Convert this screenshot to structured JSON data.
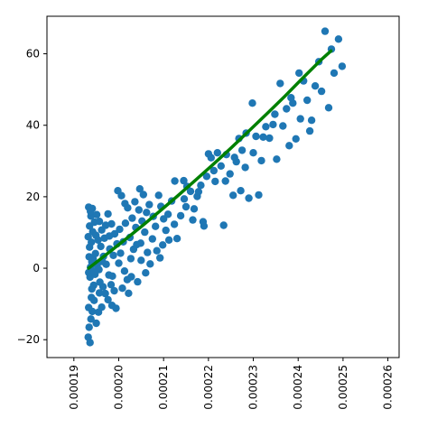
{
  "chart_data": {
    "type": "scatter",
    "title": "",
    "xlabel": "",
    "ylabel": "",
    "xlim": [
      0.000184,
      0.0002625
    ],
    "ylim": [
      -25,
      70.5
    ],
    "grid": false,
    "legend": "none",
    "x_ticks": [
      {
        "value": 0.00019,
        "label": "0.00019"
      },
      {
        "value": 0.0002,
        "label": "0.00020"
      },
      {
        "value": 0.00021,
        "label": "0.00021"
      },
      {
        "value": 0.00022,
        "label": "0.00022"
      },
      {
        "value": 0.00023,
        "label": "0.00023"
      },
      {
        "value": 0.00024,
        "label": "0.00024"
      },
      {
        "value": 0.00025,
        "label": "0.00025"
      },
      {
        "value": 0.00026,
        "label": "0.00026"
      }
    ],
    "y_ticks": [
      {
        "value": -20,
        "label": "−20"
      },
      {
        "value": 0,
        "label": "0"
      },
      {
        "value": 20,
        "label": "20"
      },
      {
        "value": 40,
        "label": "40"
      },
      {
        "value": 60,
        "label": "60"
      }
    ],
    "series": [
      {
        "kind": "scatter",
        "color": "#1f77b4",
        "points": [
          [
            0.0001932,
            -19.3
          ],
          [
            0.0001936,
            -20.8
          ],
          [
            0.0001934,
            -16.5
          ],
          [
            0.0001938,
            -14.2
          ],
          [
            0.0001941,
            -12.1
          ],
          [
            0.0001933,
            -11.0
          ],
          [
            0.0001945,
            -9.0
          ],
          [
            0.0001939,
            -8.2
          ],
          [
            0.000195,
            -15.4
          ],
          [
            0.0001955,
            -12.3
          ],
          [
            0.0001962,
            -10.9
          ],
          [
            0.000197,
            -7.1
          ],
          [
            0.0001965,
            -5.2
          ],
          [
            0.0001958,
            -3.9
          ],
          [
            0.0001944,
            -4.8
          ],
          [
            0.0001936,
            -2.5
          ],
          [
            0.0001933,
            -1.2
          ],
          [
            0.0001937,
            0.3
          ],
          [
            0.000194,
            1.8
          ],
          [
            0.0001934,
            3.2
          ],
          [
            0.0001943,
            2.6
          ],
          [
            0.0001948,
            4.1
          ],
          [
            0.0001952,
            0.9
          ],
          [
            0.0001947,
            -1.7
          ],
          [
            0.0001956,
            -0.4
          ],
          [
            0.0001935,
            5.9
          ],
          [
            0.0001939,
            7.3
          ],
          [
            0.0001932,
            8.8
          ],
          [
            0.0001942,
            10.2
          ],
          [
            0.0001935,
            11.8
          ],
          [
            0.0001946,
            12.9
          ],
          [
            0.0001938,
            14.6
          ],
          [
            0.0001941,
            16.7
          ],
          [
            0.0001933,
            17.1
          ],
          [
            0.0001951,
            15.0
          ],
          [
            0.0001957,
            13.1
          ],
          [
            0.0001962,
            10.7
          ],
          [
            0.0001968,
            8.4
          ],
          [
            0.000196,
            6.1
          ],
          [
            0.0001954,
            7.9
          ],
          [
            0.0001966,
            3.3
          ],
          [
            0.0001972,
            1.1
          ],
          [
            0.0001978,
            -1.9
          ],
          [
            0.0001983,
            -4.6
          ],
          [
            0.000199,
            -6.3
          ],
          [
            0.0001976,
            -8.8
          ],
          [
            0.0001985,
            -10.4
          ],
          [
            0.0001994,
            -11.2
          ],
          [
            0.000198,
            5.4
          ],
          [
            0.0001988,
            3.6
          ],
          [
            0.0001996,
            6.8
          ],
          [
            0.0001991,
            9.6
          ],
          [
            0.0001984,
            12.4
          ],
          [
            0.0001976,
            15.2
          ],
          [
            0.0002002,
            10.9
          ],
          [
            0.000201,
            7.4
          ],
          [
            0.0002004,
            4.2
          ],
          [
            0.0002,
            1.4
          ],
          [
            0.0002013,
            -0.8
          ],
          [
            0.0002019,
            -3.2
          ],
          [
            0.0002008,
            -5.6
          ],
          [
            0.0002022,
            -7.0
          ],
          [
            0.0002027,
            2.7
          ],
          [
            0.0002033,
            5.3
          ],
          [
            0.0002025,
            8.6
          ],
          [
            0.0002038,
            11.4
          ],
          [
            0.000203,
            14.0
          ],
          [
            0.000202,
            16.9
          ],
          [
            0.0002014,
            18.1
          ],
          [
            0.0002006,
            20.3
          ],
          [
            0.0001998,
            21.7
          ],
          [
            0.0002036,
            18.6
          ],
          [
            0.0002045,
            16.3
          ],
          [
            0.0002052,
            13.2
          ],
          [
            0.0002058,
            10.1
          ],
          [
            0.0002049,
            7.0
          ],
          [
            0.0002064,
            4.4
          ],
          [
            0.000207,
            1.2
          ],
          [
            0.000206,
            -1.3
          ],
          [
            0.0002042,
            -3.8
          ],
          [
            0.0002075,
            8.2
          ],
          [
            0.0002082,
            11.7
          ],
          [
            0.0002077,
            14.5
          ],
          [
            0.0002068,
            17.8
          ],
          [
            0.0002055,
            20.6
          ],
          [
            0.0002047,
            22.2
          ],
          [
            0.0002089,
            20.4
          ],
          [
            0.0002094,
            17.3
          ],
          [
            0.00021,
            13.8
          ],
          [
            0.0002105,
            10.6
          ],
          [
            0.0002098,
            6.5
          ],
          [
            0.0002092,
            2.9
          ],
          [
            0.000211,
            15.1
          ],
          [
            0.0002118,
            18.8
          ],
          [
            0.0002124,
            12.3
          ],
          [
            0.000213,
            8.3
          ],
          [
            0.0002138,
            14.7
          ],
          [
            0.0002146,
            19.4
          ],
          [
            0.0002152,
            22.9
          ],
          [
            0.0002145,
            24.5
          ],
          [
            0.000216,
            21.5
          ],
          [
            0.0002168,
            16.6
          ],
          [
            0.0002175,
            20.1
          ],
          [
            0.0002183,
            23.2
          ],
          [
            0.000219,
            11.8
          ],
          [
            0.0002196,
            25.7
          ],
          [
            0.0002206,
            30.9
          ],
          [
            0.0002212,
            27.3
          ],
          [
            0.000222,
            32.3
          ],
          [
            0.0002228,
            28.6
          ],
          [
            0.0002234,
            12.0
          ],
          [
            0.000224,
            31.8
          ],
          [
            0.0002248,
            26.4
          ],
          [
            0.0002255,
            20.4
          ],
          [
            0.0002262,
            29.8
          ],
          [
            0.0002268,
            36.3
          ],
          [
            0.0002275,
            33.0
          ],
          [
            0.0002282,
            28.2
          ],
          [
            0.000229,
            19.6
          ],
          [
            0.0002298,
            46.2
          ],
          [
            0.0002306,
            36.9
          ],
          [
            0.00023,
            32.3
          ],
          [
            0.0002312,
            20.5
          ],
          [
            0.0002322,
            36.7
          ],
          [
            0.0002328,
            39.6
          ],
          [
            0.0002336,
            36.4
          ],
          [
            0.0002344,
            40.2
          ],
          [
            0.0002352,
            30.5
          ],
          [
            0.000236,
            51.7
          ],
          [
            0.0002366,
            39.8
          ],
          [
            0.0002374,
            44.6
          ],
          [
            0.000238,
            34.3
          ],
          [
            0.0002388,
            46.2
          ],
          [
            0.0002395,
            36.2
          ],
          [
            0.0002402,
            54.6
          ],
          [
            0.0002412,
            52.4
          ],
          [
            0.000242,
            47.0
          ],
          [
            0.000243,
            41.4
          ],
          [
            0.0002438,
            51.0
          ],
          [
            0.0002446,
            57.8
          ],
          [
            0.0002452,
            49.5
          ],
          [
            0.000246,
            66.3
          ],
          [
            0.0002468,
            44.9
          ],
          [
            0.000248,
            54.6
          ],
          [
            0.000249,
            64.1
          ],
          [
            0.0002498,
            56.5
          ],
          [
            0.0001937,
            15.9
          ],
          [
            0.000194,
            -5.8
          ],
          [
            0.0001945,
            -0.9
          ],
          [
            0.0001949,
            9.2
          ],
          [
            0.0001957,
            -6.9
          ],
          [
            0.0001963,
            1.9
          ],
          [
            0.0001971,
            12.0
          ],
          [
            0.0001979,
            9.0
          ],
          [
            0.0001986,
            -2.2
          ],
          [
            0.0002015,
            12.6
          ],
          [
            0.0002028,
            -2.4
          ],
          [
            0.000204,
            6.6
          ],
          [
            0.000205,
            2.2
          ],
          [
            0.0002062,
            15.6
          ],
          [
            0.0002085,
            4.9
          ],
          [
            0.0002112,
            7.9
          ],
          [
            0.0002125,
            24.4
          ],
          [
            0.000215,
            17.2
          ],
          [
            0.0002165,
            13.5
          ],
          [
            0.0002178,
            21.4
          ],
          [
            0.0002188,
            13.0
          ],
          [
            0.00022,
            32.0
          ],
          [
            0.0002215,
            24.3
          ],
          [
            0.0002238,
            24.4
          ],
          [
            0.0002258,
            31.0
          ],
          [
            0.0002272,
            21.7
          ],
          [
            0.0002284,
            37.8
          ],
          [
            0.0002318,
            30.1
          ],
          [
            0.0002348,
            43.1
          ],
          [
            0.0002384,
            47.7
          ],
          [
            0.0002405,
            41.8
          ],
          [
            0.0002426,
            38.4
          ],
          [
            0.0002474,
            61.3
          ]
        ]
      },
      {
        "kind": "line",
        "color": "#008000",
        "points": [
          [
            0.0001933,
            0.0
          ],
          [
            0.000197,
            3.6
          ],
          [
            0.000201,
            7.6
          ],
          [
            0.000205,
            11.6
          ],
          [
            0.000209,
            15.8
          ],
          [
            0.000213,
            20.1
          ],
          [
            0.000217,
            24.5
          ],
          [
            0.000221,
            29.0
          ],
          [
            0.000225,
            33.6
          ],
          [
            0.000229,
            38.4
          ],
          [
            0.000233,
            43.2
          ],
          [
            0.000237,
            48.1
          ],
          [
            0.000241,
            53.2
          ],
          [
            0.000245,
            58.2
          ],
          [
            0.0002473,
            60.8
          ]
        ]
      }
    ]
  }
}
